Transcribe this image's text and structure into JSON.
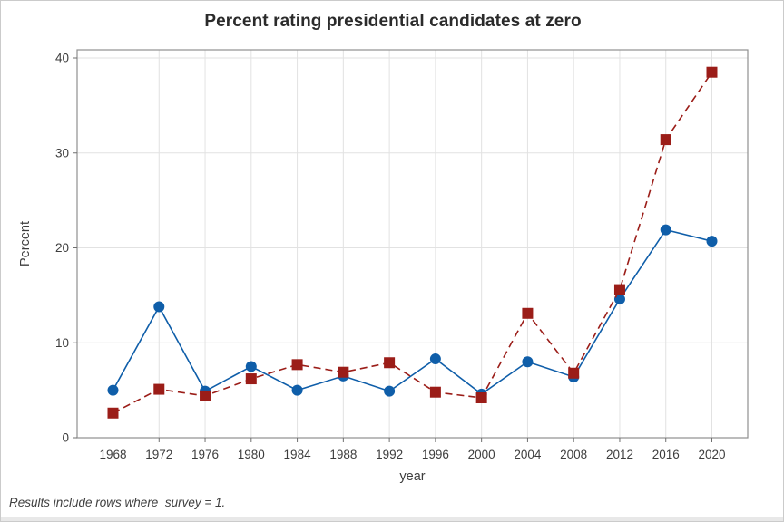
{
  "window": {
    "background": "#ffffff",
    "border_color": "#cbcbcb",
    "bottom_edge_color": "#e8e8e8"
  },
  "footnote": {
    "text": "Results include rows where  survey = 1."
  },
  "chart_data": {
    "type": "line",
    "title": "Percent rating presidential candidates at zero",
    "xlabel": "year",
    "ylabel": "Percent",
    "x": [
      1968,
      1972,
      1976,
      1980,
      1984,
      1988,
      1992,
      1996,
      2000,
      2004,
      2008,
      2012,
      2016,
      2020
    ],
    "series": [
      {
        "name": "series-blue-circles",
        "color": "#0f5ea9",
        "marker": "circle",
        "line_style": "solid",
        "values": [
          5.0,
          13.8,
          4.9,
          7.5,
          5.0,
          6.5,
          4.9,
          8.3,
          4.6,
          8.0,
          6.4,
          14.6,
          21.9,
          20.7
        ]
      },
      {
        "name": "series-red-squares",
        "color": "#9b1d18",
        "marker": "square",
        "line_style": "dashed",
        "values": [
          2.6,
          5.1,
          4.4,
          6.2,
          7.7,
          6.9,
          7.9,
          4.8,
          4.2,
          13.1,
          6.8,
          15.6,
          31.4,
          38.5
        ]
      }
    ],
    "ylim": [
      0,
      40
    ],
    "yticks": [
      0,
      10,
      20,
      30,
      40
    ],
    "grid": true,
    "legend": "none",
    "frame_color": "#8f8f8f",
    "grid_color": "#e2e2e2",
    "tick_color": "#6f6f6f"
  }
}
